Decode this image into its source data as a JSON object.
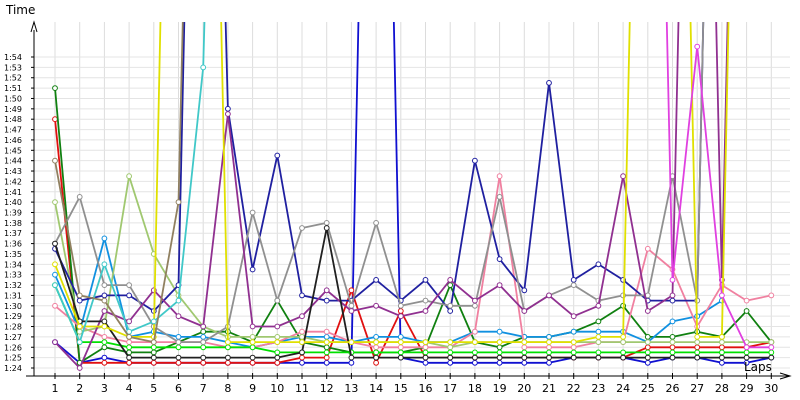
{
  "chart_data": {
    "type": "line",
    "ylabel": "Time",
    "xlabel": "Laps",
    "x_ticks": [
      "1",
      "2",
      "3",
      "4",
      "5",
      "6",
      "7",
      "8",
      "9",
      "10",
      "11",
      "12",
      "13",
      "14",
      "15",
      "16",
      "17",
      "18",
      "19",
      "20",
      "21",
      "22",
      "23",
      "24",
      "25",
      "26",
      "27",
      "28",
      "29",
      "30"
    ],
    "y_ticks": [
      "1:24",
      "1:25",
      "1:26",
      "1:27",
      "1:28",
      "1:29",
      "1:30",
      "1:31",
      "1:32",
      "1:33",
      "1:34",
      "1:35",
      "1:36",
      "1:37",
      "1:38",
      "1:39",
      "1:40",
      "1:41",
      "1:42",
      "1:43",
      "1:44",
      "1:45",
      "1:46",
      "1:47",
      "1:48",
      "1:49",
      "1:50",
      "1:51",
      "1:52",
      "1:53",
      "1:54"
    ],
    "ylim_seconds": [
      83,
      115
    ],
    "grid": true,
    "series": [
      {
        "color": "#1010d0",
        "values": [
          86.5,
          84.5,
          85.0,
          84.5,
          84.5,
          84.5,
          84.5,
          84.5,
          84.5,
          84.5,
          84.5,
          84.5,
          84.5,
          200,
          85.0,
          84.5,
          84.5,
          84.5,
          84.5,
          84.5,
          84.5,
          85.0,
          85.0,
          85.0,
          84.5,
          85.0,
          85.0,
          84.5,
          84.5,
          85.0
        ]
      },
      {
        "color": "#e01010",
        "values": [
          108,
          84.5,
          84.5,
          84.5,
          84.5,
          84.5,
          84.5,
          84.5,
          84.5,
          84.5,
          85.0,
          85.0,
          91.5,
          84.5,
          89.5,
          85.0,
          85.0,
          85.0,
          85.0,
          85.0,
          85.0,
          85.0,
          85.0,
          85.0,
          86.0,
          86.0,
          86.0,
          86.0,
          86.0,
          86.5
        ]
      },
      {
        "color": "#108010",
        "values": [
          111,
          84.5,
          86.0,
          85.5,
          85.5,
          86.5,
          87.5,
          87.5,
          86.5,
          90.5,
          86.5,
          86.0,
          85.5,
          85.5,
          85.5,
          86.0,
          92.0,
          86.5,
          86.0,
          87.0,
          87.0,
          87.5,
          88.5,
          90.0,
          87.0,
          87.0,
          87.5,
          87.0,
          89.5,
          86.5
        ]
      },
      {
        "color": "#1090e0",
        "values": [
          93.0,
          87.5,
          96.5,
          87.0,
          87.5,
          87.0,
          87.0,
          86.5,
          86.0,
          86.5,
          87.0,
          87.0,
          86.5,
          87.0,
          87.0,
          86.5,
          86.5,
          87.5,
          87.5,
          87.0,
          87.0,
          87.5,
          87.5,
          87.5,
          86.5,
          88.5,
          89.0,
          90.5,
          200,
          200
        ]
      },
      {
        "color": "#f080a0",
        "values": [
          90.0,
          88.0,
          87.0,
          86.5,
          86.5,
          86.5,
          86.5,
          86.0,
          86.0,
          86.5,
          87.5,
          87.5,
          86.5,
          86.0,
          86.0,
          86.0,
          86.0,
          87.5,
          102.5,
          86.0,
          86.0,
          86.0,
          86.5,
          86.5,
          95.5,
          93.5,
          88.0,
          92.0,
          90.5,
          91.0
        ]
      },
      {
        "color": "#a0c870",
        "values": [
          100,
          87.5,
          88.0,
          102.5,
          95.0,
          91.0,
          88.0,
          87.0,
          87.0,
          87.0,
          87.0,
          86.5,
          86.5,
          86.5,
          86.5,
          86.5,
          86.0,
          86.5,
          86.5,
          86.5,
          86.5,
          86.5,
          86.5,
          86.5,
          86.5,
          86.5,
          86.5,
          86.5,
          86.5,
          86.5
        ]
      },
      {
        "color": "#00e000",
        "values": [
          92.0,
          86.5,
          86.5,
          86.0,
          86.0,
          86.0,
          86.0,
          86.0,
          86.0,
          85.5,
          85.5,
          85.5,
          85.5,
          85.5,
          85.5,
          85.5,
          85.5,
          85.5,
          85.5,
          85.5,
          85.5,
          85.5,
          85.5,
          85.5,
          85.5,
          85.5,
          85.5,
          85.5,
          85.5,
          85.5
        ]
      },
      {
        "color": "#2020a0",
        "values": [
          95.5,
          90.5,
          91.0,
          91.0,
          89.5,
          92.0,
          200,
          109,
          93.5,
          104.5,
          91.0,
          90.5,
          90.5,
          92.5,
          90.5,
          92.5,
          89.5,
          104,
          94.5,
          91.5,
          111.5,
          92.5,
          94.0,
          92.5,
          90.5,
          90.5,
          90.5,
          200,
          200,
          200
        ]
      },
      {
        "color": "#909090",
        "values": [
          96.0,
          100.5,
          92.0,
          92.0,
          88.0,
          86.5,
          86.5,
          88.0,
          99.0,
          90.5,
          97.5,
          98.0,
          90.0,
          98.0,
          90.0,
          90.5,
          90.0,
          90.0,
          100.5,
          89.5,
          91.0,
          92.0,
          90.5,
          91.0,
          91.0,
          102.5,
          90.5,
          200,
          200,
          200
        ]
      },
      {
        "color": "#903090",
        "values": [
          86.5,
          84.0,
          89.5,
          88.5,
          91.5,
          89.0,
          88.0,
          108.5,
          88.0,
          88.0,
          89.0,
          91.5,
          89.5,
          90.0,
          89.0,
          89.5,
          92.5,
          90.5,
          92.0,
          89.5,
          91.0,
          89.0,
          90.0,
          102.5,
          89.5,
          91.0,
          200,
          92.5,
          200,
          200
        ]
      },
      {
        "color": "#202020",
        "values": [
          96.0,
          88.5,
          88.5,
          85.0,
          85.0,
          85.0,
          85.0,
          85.0,
          85.0,
          85.0,
          85.5,
          97.5,
          85.0,
          85.0,
          85.0,
          85.0,
          85.0,
          85.0,
          85.0,
          85.0,
          85.0,
          85.0,
          85.0,
          85.0,
          85.0,
          85.0,
          85.0,
          85.0,
          85.0,
          85.0
        ]
      },
      {
        "color": "#e0e000",
        "values": [
          94.0,
          88.0,
          88.0,
          87.0,
          87.0,
          200,
          200,
          86.5,
          86.5,
          86.5,
          86.5,
          86.5,
          86.5,
          86.5,
          86.5,
          86.5,
          86.5,
          86.5,
          86.5,
          86.5,
          86.5,
          86.5,
          87.0,
          87.0,
          200,
          200,
          87.0,
          87.0,
          200,
          200
        ]
      },
      {
        "color": "#40c8c8",
        "values": [
          92.0,
          86.5,
          94.0,
          87.5,
          88.5,
          90.5,
          113,
          200,
          200,
          200,
          200,
          200,
          200,
          200,
          200,
          200,
          200,
          200,
          200,
          200,
          200,
          200,
          200,
          200,
          200,
          200,
          200,
          200,
          200,
          200
        ]
      },
      {
        "color": "#908060",
        "values": [
          104.0,
          91.0,
          90.5,
          87.0,
          86.5,
          100,
          200,
          200,
          200,
          200,
          200,
          200,
          200,
          200,
          200,
          200,
          200,
          200,
          200,
          200,
          200,
          200,
          200,
          200,
          200,
          200,
          200,
          200,
          200,
          200
        ]
      },
      {
        "color": "#e040e0",
        "values": [
          200,
          200,
          200,
          200,
          200,
          200,
          200,
          200,
          200,
          200,
          200,
          200,
          200,
          200,
          200,
          200,
          200,
          200,
          200,
          200,
          200,
          200,
          200,
          200,
          200,
          92.5,
          115,
          91.0,
          86.0,
          86.0
        ]
      }
    ]
  }
}
